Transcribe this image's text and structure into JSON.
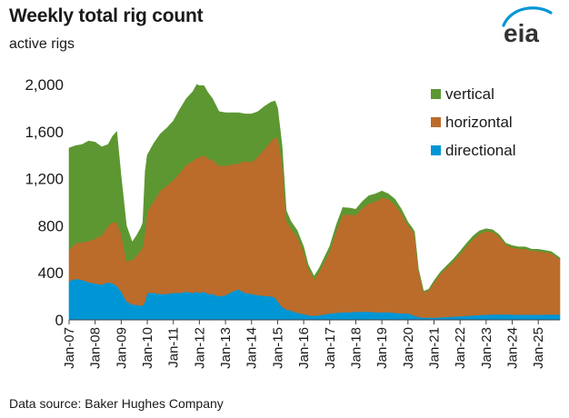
{
  "header": {
    "title": "Weekly total rig count",
    "subtitle": "active rigs"
  },
  "logo": {
    "text": "eia",
    "icon": "eia-logo",
    "accent": "#0096d6"
  },
  "footer": {
    "source": "Data source: Baker Hughes Company"
  },
  "chart_data": {
    "type": "area",
    "stacked": true,
    "title": "Weekly total rig count",
    "ylabel": "active rigs",
    "ylim": [
      0,
      2000
    ],
    "y_ticks": [
      0,
      400,
      800,
      1200,
      1600,
      2000
    ],
    "y_tick_labels": [
      "0",
      "400",
      "800",
      "1,200",
      "1,600",
      "2,000"
    ],
    "xlim": [
      2007.0,
      2025.83
    ],
    "x_ticks": [
      2007,
      2008,
      2009,
      2010,
      2011,
      2012,
      2013,
      2014,
      2015,
      2016,
      2017,
      2018,
      2019,
      2020,
      2021,
      2022,
      2023,
      2024,
      2025
    ],
    "x_tick_labels": [
      "Jan-07",
      "Jan-08",
      "Jan-09",
      "Jan-10",
      "Jan-11",
      "Jan-12",
      "Jan-13",
      "Jan-14",
      "Jan-15",
      "Jan-16",
      "Jan-17",
      "Jan-18",
      "Jan-19",
      "Jan-20",
      "Jan-21",
      "Jan-22",
      "Jan-23",
      "Jan-24",
      "Jan-25"
    ],
    "grid": "horizontal",
    "legend_position": "top-right",
    "legend_order": [
      "vertical",
      "horizontal",
      "directional"
    ],
    "x": [
      2007.0,
      2007.25,
      2007.5,
      2007.75,
      2008.0,
      2008.25,
      2008.5,
      2008.67,
      2008.83,
      2009.0,
      2009.2,
      2009.42,
      2009.6,
      2009.75,
      2009.83,
      2009.92,
      2010.0,
      2010.25,
      2010.5,
      2010.75,
      2011.0,
      2011.25,
      2011.5,
      2011.75,
      2011.9,
      2012.0,
      2012.17,
      2012.33,
      2012.5,
      2012.75,
      2013.0,
      2013.25,
      2013.5,
      2013.75,
      2014.0,
      2014.25,
      2014.5,
      2014.75,
      2014.9,
      2015.0,
      2015.17,
      2015.33,
      2015.5,
      2015.75,
      2016.0,
      2016.17,
      2016.4,
      2016.6,
      2016.75,
      2017.0,
      2017.25,
      2017.5,
      2017.75,
      2018.0,
      2018.25,
      2018.5,
      2018.75,
      2018.9,
      2019.0,
      2019.25,
      2019.5,
      2019.75,
      2020.0,
      2020.15,
      2020.25,
      2020.4,
      2020.6,
      2020.8,
      2021.0,
      2021.25,
      2021.5,
      2021.75,
      2022.0,
      2022.25,
      2022.5,
      2022.75,
      2023.0,
      2023.25,
      2023.5,
      2023.75,
      2024.0,
      2024.25,
      2024.5,
      2024.75,
      2025.0,
      2025.25,
      2025.5,
      2025.83
    ],
    "series": [
      {
        "name": "directional",
        "color": "#0096d6",
        "values": [
          330,
          350,
          340,
          320,
          310,
          300,
          320,
          310,
          290,
          240,
          160,
          130,
          130,
          120,
          125,
          160,
          230,
          230,
          220,
          220,
          230,
          230,
          240,
          230,
          240,
          230,
          240,
          220,
          220,
          200,
          210,
          240,
          260,
          230,
          220,
          210,
          205,
          200,
          190,
          160,
          110,
          90,
          80,
          60,
          50,
          40,
          35,
          40,
          45,
          55,
          60,
          65,
          65,
          70,
          70,
          70,
          65,
          65,
          65,
          65,
          60,
          55,
          55,
          45,
          35,
          25,
          20,
          20,
          20,
          22,
          25,
          28,
          30,
          35,
          38,
          42,
          45,
          47,
          48,
          47,
          46,
          45,
          45,
          45,
          45,
          46,
          46,
          45
        ]
      },
      {
        "name": "horizontal",
        "color": "#bb6c2a",
        "values": [
          265,
          300,
          320,
          350,
          380,
          420,
          480,
          520,
          540,
          490,
          340,
          380,
          420,
          470,
          500,
          600,
          690,
          780,
          880,
          920,
          960,
          1020,
          1080,
          1120,
          1140,
          1150,
          1160,
          1150,
          1140,
          1110,
          1100,
          1080,
          1070,
          1120,
          1120,
          1180,
          1250,
          1320,
          1360,
          1390,
          1230,
          760,
          700,
          650,
          530,
          400,
          310,
          370,
          430,
          530,
          700,
          830,
          830,
          820,
          880,
          920,
          940,
          960,
          975,
          960,
          920,
          850,
          750,
          720,
          700,
          400,
          215,
          230,
          300,
          370,
          420,
          470,
          530,
          590,
          650,
          690,
          710,
          700,
          660,
          590,
          570,
          560,
          560,
          540,
          540,
          530,
          520,
          470
        ]
      },
      {
        "name": "vertical",
        "color": "#5d9732",
        "values": [
          865,
          830,
          830,
          850,
          820,
          750,
          690,
          730,
          770,
          480,
          300,
          150,
          170,
          190,
          200,
          500,
          480,
          490,
          480,
          490,
          500,
          540,
          560,
          590,
          620,
          610,
          590,
          560,
          520,
          460,
          450,
          440,
          430,
          400,
          410,
          380,
          360,
          330,
          310,
          250,
          140,
          80,
          60,
          50,
          40,
          30,
          25,
          30,
          35,
          40,
          45,
          60,
          55,
          50,
          55,
          65,
          65,
          60,
          55,
          45,
          45,
          35,
          25,
          20,
          15,
          10,
          8,
          10,
          12,
          15,
          18,
          20,
          22,
          25,
          25,
          25,
          20,
          18,
          15,
          15,
          15,
          15,
          15,
          15,
          15,
          14,
          14,
          12
        ]
      }
    ]
  }
}
